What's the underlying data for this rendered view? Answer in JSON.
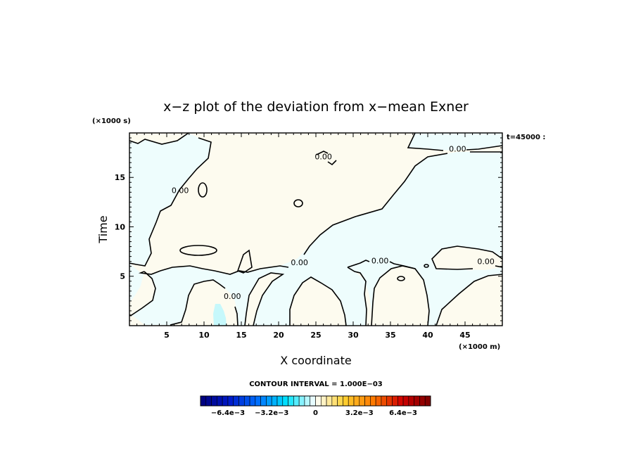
{
  "chart_data": {
    "type": "contour",
    "title": "x−z plot of the deviation from x−mean Exner",
    "xlabel": "X coordinate",
    "ylabel": "Time",
    "x_unit": "(×1000 m)",
    "y_unit": "(×1000 s)",
    "time_label": "t=45000 :",
    "xlim": [
      0,
      50
    ],
    "ylim": [
      0,
      19.5
    ],
    "x_ticks": [
      5,
      10,
      15,
      20,
      25,
      30,
      35,
      40,
      45
    ],
    "y_ticks": [
      5,
      10,
      15
    ],
    "contour_interval_text": "CONTOUR INTERVAL = 1.000E−03",
    "contour_labels": [
      {
        "text": "0.00",
        "x": 44,
        "y": 17.9
      },
      {
        "text": "0.00",
        "x": 26,
        "y": 17.1
      },
      {
        "text": "0.00",
        "x": 6.8,
        "y": 13.7
      },
      {
        "text": "0.00",
        "x": 22.8,
        "y": 6.4
      },
      {
        "text": "0.00",
        "x": 33.6,
        "y": 6.6
      },
      {
        "text": "0.00",
        "x": 47.8,
        "y": 6.5
      },
      {
        "text": "0.00",
        "x": 13.8,
        "y": 3.0
      }
    ],
    "regions": {
      "positive_color": "#fdfbef",
      "negative_color": "#eefdfd",
      "min_color": "#c6f8fb"
    },
    "colorbar": {
      "tick_labels": [
        "−6.4e−3",
        "−3.2e−3",
        "0",
        "3.2e−3",
        "6.4e−3"
      ],
      "tick_values": [
        -0.0064,
        -0.0032,
        0,
        0.0032,
        0.0064
      ],
      "range": [
        -0.0084,
        0.0084
      ],
      "n_levels": 42,
      "colors": [
        "#00007a",
        "#0018c8",
        "#0070ff",
        "#00e4ff",
        "#ffffff",
        "#ffd030",
        "#ff7a00",
        "#d00000",
        "#7a0000"
      ]
    }
  }
}
